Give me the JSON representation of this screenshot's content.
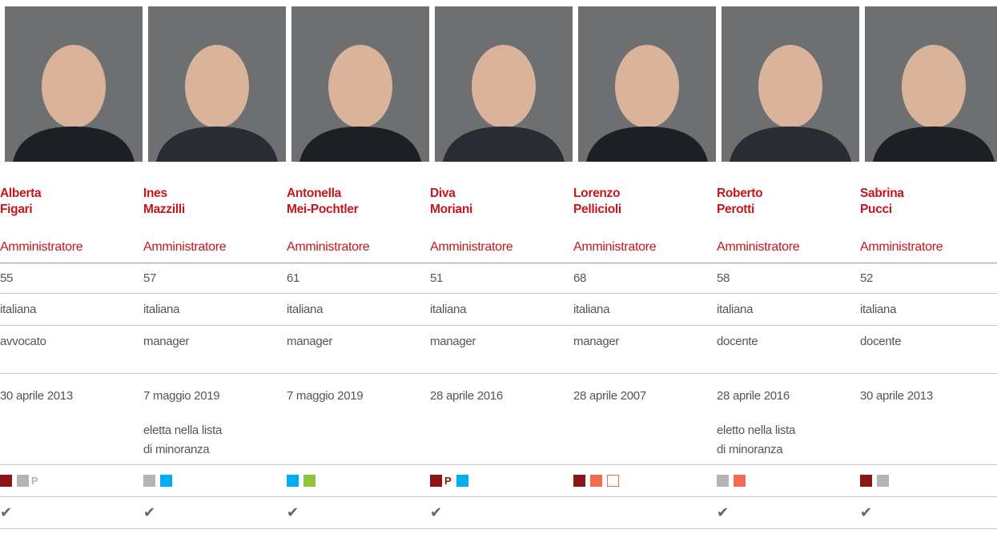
{
  "members": [
    {
      "first": "Alberta",
      "last": "Figari",
      "role": "Amministratore",
      "age": "55",
      "nationality": "italiana",
      "profession": "avvocato",
      "date": "30 aprile 2013",
      "committees": [
        {
          "color": "#8c1515"
        },
        {
          "color": "#b4b4b4",
          "label": "P"
        }
      ],
      "check": "✔"
    },
    {
      "first": "Ines",
      "last": "Mazzilli",
      "role": "Amministratore",
      "age": "57",
      "nationality": "italiana",
      "profession": "manager",
      "date": "7 maggio 2019",
      "note": [
        "eletta nella lista",
        "di minoranza"
      ],
      "committees": [
        {
          "color": "#b4b4b4"
        },
        {
          "color": "#00aeef"
        }
      ],
      "check": "✔"
    },
    {
      "first": "Antonella",
      "last": "Mei-Pochtler",
      "role": "Amministratore",
      "age": "61",
      "nationality": "italiana",
      "profession": "manager",
      "date": "7 maggio 2019",
      "committees": [
        {
          "color": "#00aeef"
        },
        {
          "color": "#8dc63f"
        }
      ],
      "check": "✔"
    },
    {
      "first": "Diva",
      "last": "Moriani",
      "role": "Amministratore",
      "age": "51",
      "nationality": "italiana",
      "profession": "manager",
      "date": "28 aprile 2016",
      "committees": [
        {
          "color": "#8c1515",
          "label": "P"
        },
        {
          "color": "#00aeef"
        }
      ],
      "check": "✔"
    },
    {
      "first": "Lorenzo",
      "last": "Pellicioli",
      "role": "Amministratore",
      "age": "68",
      "nationality": "italiana",
      "profession": "manager",
      "date": "28 aprile 2007",
      "committees": [
        {
          "color": "#8c1515"
        },
        {
          "color": "#f26b4f"
        },
        {
          "color": "#f26b4f",
          "outline": true
        }
      ]
    },
    {
      "first": "Roberto",
      "last": "Perotti",
      "role": "Amministratore",
      "age": "58",
      "nationality": "italiana",
      "profession": "docente",
      "date": "28 aprile 2016",
      "note": [
        "eletto nella lista",
        "di minoranza"
      ],
      "committees": [
        {
          "color": "#b4b4b4"
        },
        {
          "color": "#f26b4f"
        }
      ],
      "check": "✔"
    },
    {
      "first": "Sabrina",
      "last": "Pucci",
      "role": "Amministratore",
      "age": "52",
      "nationality": "italiana",
      "profession": "docente",
      "date": "30 aprile 2013",
      "committees": [
        {
          "color": "#8c1515"
        },
        {
          "color": "#b4b4b4"
        }
      ],
      "check": "✔"
    }
  ]
}
